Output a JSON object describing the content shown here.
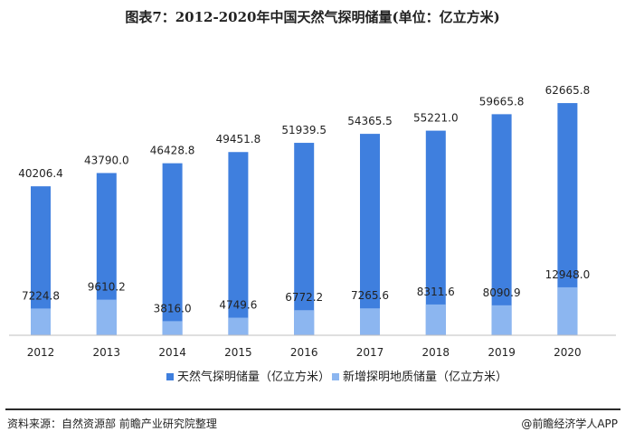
{
  "header": {
    "title": "图表7：2012-2020年中国天然气探明储量(单位：亿立方米)"
  },
  "chart_data": {
    "type": "bar",
    "categories": [
      "2012",
      "2013",
      "2014",
      "2015",
      "2016",
      "2017",
      "2018",
      "2019",
      "2020"
    ],
    "series": [
      {
        "name": "天然气探明储量（亿立方米）",
        "values": [
          40206.4,
          43790.0,
          46428.8,
          49451.8,
          51939.5,
          54365.5,
          55221.0,
          59665.8,
          62665.8
        ],
        "labels": [
          "40206.4",
          "43790.0",
          "46428.8",
          "49451.8",
          "51939.5",
          "54365.5",
          "55221.0",
          "59665.8",
          "62665.8"
        ],
        "color": "#3f7fde"
      },
      {
        "name": "新增探明地质储量（亿立方米）",
        "values": [
          7224.8,
          9610.2,
          3816.0,
          4749.6,
          6772.2,
          7265.6,
          8311.6,
          8090.9,
          12948.0
        ],
        "labels": [
          "7224.8",
          "9610.2",
          "3816.0",
          "4749.6",
          "6772.2",
          "7265.6",
          "8311.6",
          "8090.9",
          "12948.0"
        ],
        "color": "#8cb6f0"
      }
    ],
    "ylim": [
      0,
      70000
    ],
    "grid": false,
    "legend_position": "bottom"
  },
  "footer": {
    "source": "资料来源：自然资源部 前瞻产业研究院整理",
    "credit": "@前瞻经济学人APP"
  }
}
